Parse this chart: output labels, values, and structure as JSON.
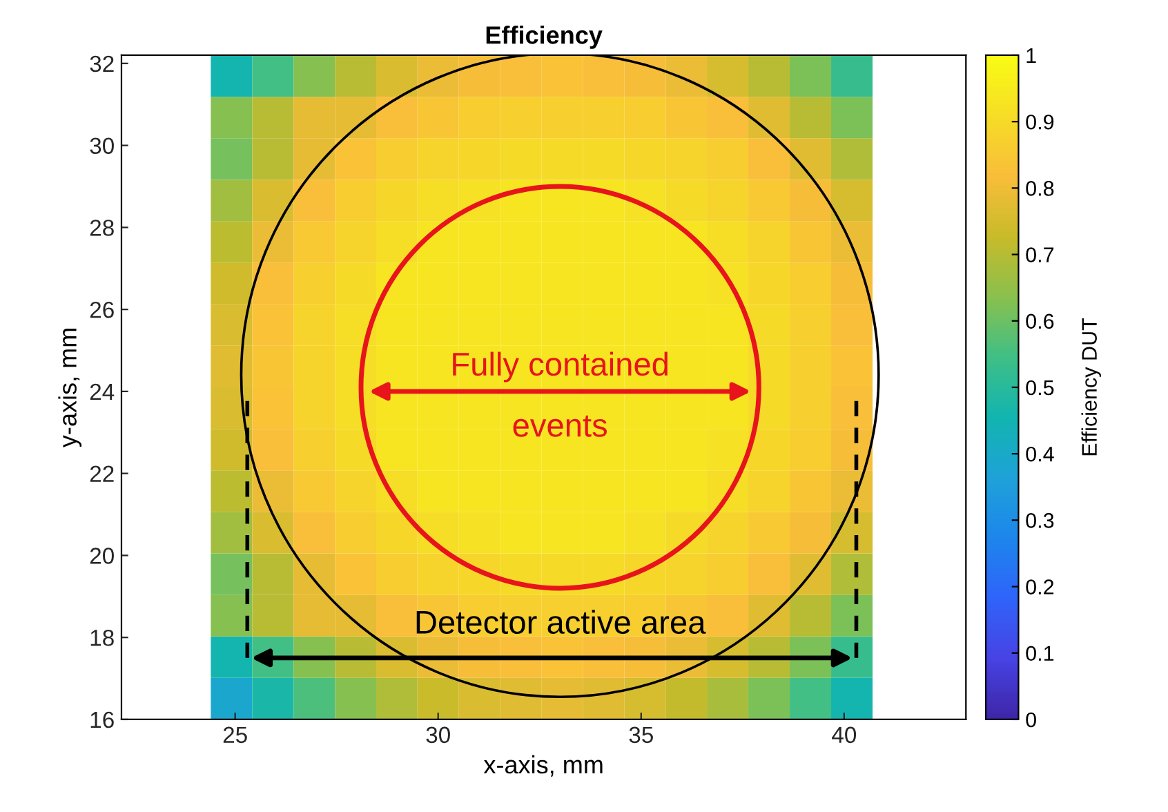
{
  "chart_data": {
    "type": "heatmap",
    "title": "Efficiency",
    "xlabel": "x-axis, mm",
    "ylabel": "y-axis, mm",
    "clabel": "Efficiency DUT",
    "x": [
      24.91,
      25.93,
      26.95,
      27.97,
      28.98,
      30.0,
      31.02,
      32.04,
      33.06,
      34.08,
      35.1,
      36.11,
      37.13,
      38.15,
      39.17,
      40.19
    ],
    "y": [
      31.69,
      30.68,
      29.67,
      28.65,
      27.64,
      26.63,
      25.62,
      24.61,
      23.59,
      22.58,
      21.57,
      20.56,
      19.54,
      18.53,
      17.52,
      16.51
    ],
    "cells": [
      [
        0.46,
        0.55,
        0.63,
        0.7,
        0.76,
        0.79,
        0.81,
        0.82,
        0.83,
        0.82,
        0.81,
        0.79,
        0.75,
        0.7,
        0.62,
        0.53
      ],
      [
        0.63,
        0.7,
        0.78,
        0.78,
        0.82,
        0.84,
        0.86,
        0.87,
        0.87,
        0.87,
        0.86,
        0.84,
        0.82,
        0.77,
        0.7,
        0.62
      ],
      [
        0.61,
        0.7,
        0.78,
        0.83,
        0.86,
        0.88,
        0.89,
        0.9,
        0.9,
        0.9,
        0.89,
        0.88,
        0.86,
        0.82,
        0.77,
        0.69
      ],
      [
        0.67,
        0.76,
        0.82,
        0.86,
        0.89,
        0.91,
        0.92,
        0.93,
        0.93,
        0.93,
        0.92,
        0.9,
        0.88,
        0.85,
        0.81,
        0.75
      ],
      [
        0.71,
        0.79,
        0.85,
        0.88,
        0.91,
        0.93,
        0.93,
        0.93,
        0.93,
        0.93,
        0.93,
        0.93,
        0.91,
        0.88,
        0.84,
        0.79
      ],
      [
        0.74,
        0.82,
        0.87,
        0.9,
        0.93,
        0.93,
        0.93,
        0.93,
        0.93,
        0.93,
        0.93,
        0.93,
        0.92,
        0.89,
        0.86,
        0.81
      ],
      [
        0.76,
        0.83,
        0.88,
        0.91,
        0.93,
        0.93,
        0.93,
        0.93,
        0.93,
        0.93,
        0.93,
        0.93,
        0.93,
        0.9,
        0.87,
        0.82
      ],
      [
        0.77,
        0.84,
        0.88,
        0.91,
        0.93,
        0.93,
        0.93,
        0.93,
        0.93,
        0.93,
        0.93,
        0.93,
        0.93,
        0.9,
        0.87,
        0.83
      ],
      [
        0.76,
        0.83,
        0.88,
        0.91,
        0.93,
        0.93,
        0.93,
        0.93,
        0.93,
        0.93,
        0.93,
        0.93,
        0.93,
        0.9,
        0.87,
        0.82
      ],
      [
        0.74,
        0.82,
        0.87,
        0.9,
        0.93,
        0.93,
        0.93,
        0.93,
        0.93,
        0.93,
        0.93,
        0.93,
        0.92,
        0.89,
        0.86,
        0.81
      ],
      [
        0.71,
        0.79,
        0.85,
        0.88,
        0.91,
        0.93,
        0.93,
        0.93,
        0.93,
        0.93,
        0.93,
        0.93,
        0.91,
        0.88,
        0.84,
        0.79
      ],
      [
        0.67,
        0.76,
        0.82,
        0.86,
        0.89,
        0.91,
        0.92,
        0.93,
        0.93,
        0.93,
        0.92,
        0.9,
        0.88,
        0.85,
        0.81,
        0.75
      ],
      [
        0.61,
        0.7,
        0.78,
        0.83,
        0.86,
        0.88,
        0.89,
        0.9,
        0.9,
        0.9,
        0.89,
        0.88,
        0.86,
        0.82,
        0.77,
        0.69
      ],
      [
        0.63,
        0.7,
        0.78,
        0.78,
        0.82,
        0.84,
        0.86,
        0.87,
        0.87,
        0.87,
        0.86,
        0.84,
        0.82,
        0.77,
        0.7,
        0.62
      ],
      [
        0.46,
        0.55,
        0.63,
        0.7,
        0.76,
        0.79,
        0.81,
        0.82,
        0.83,
        0.82,
        0.81,
        0.79,
        0.75,
        0.7,
        0.62,
        0.53
      ],
      [
        0.39,
        0.47,
        0.56,
        0.63,
        0.69,
        0.73,
        0.76,
        0.77,
        0.78,
        0.77,
        0.75,
        0.72,
        0.68,
        0.62,
        0.55,
        0.46
      ]
    ],
    "clim": [
      0,
      1
    ],
    "cticks": [
      0,
      0.1,
      0.2,
      0.3,
      0.4,
      0.5,
      0.6,
      0.7,
      0.8,
      0.9,
      1
    ],
    "xlim": [
      22.2,
      43
    ],
    "xticks": [
      25,
      30,
      35,
      40
    ],
    "ylim": [
      16,
      32.2
    ],
    "yticks": [
      16,
      18,
      20,
      22,
      24,
      26,
      28,
      30,
      32
    ],
    "annotations": [
      "Fully contained\nevents",
      "Detector active area"
    ]
  }
}
